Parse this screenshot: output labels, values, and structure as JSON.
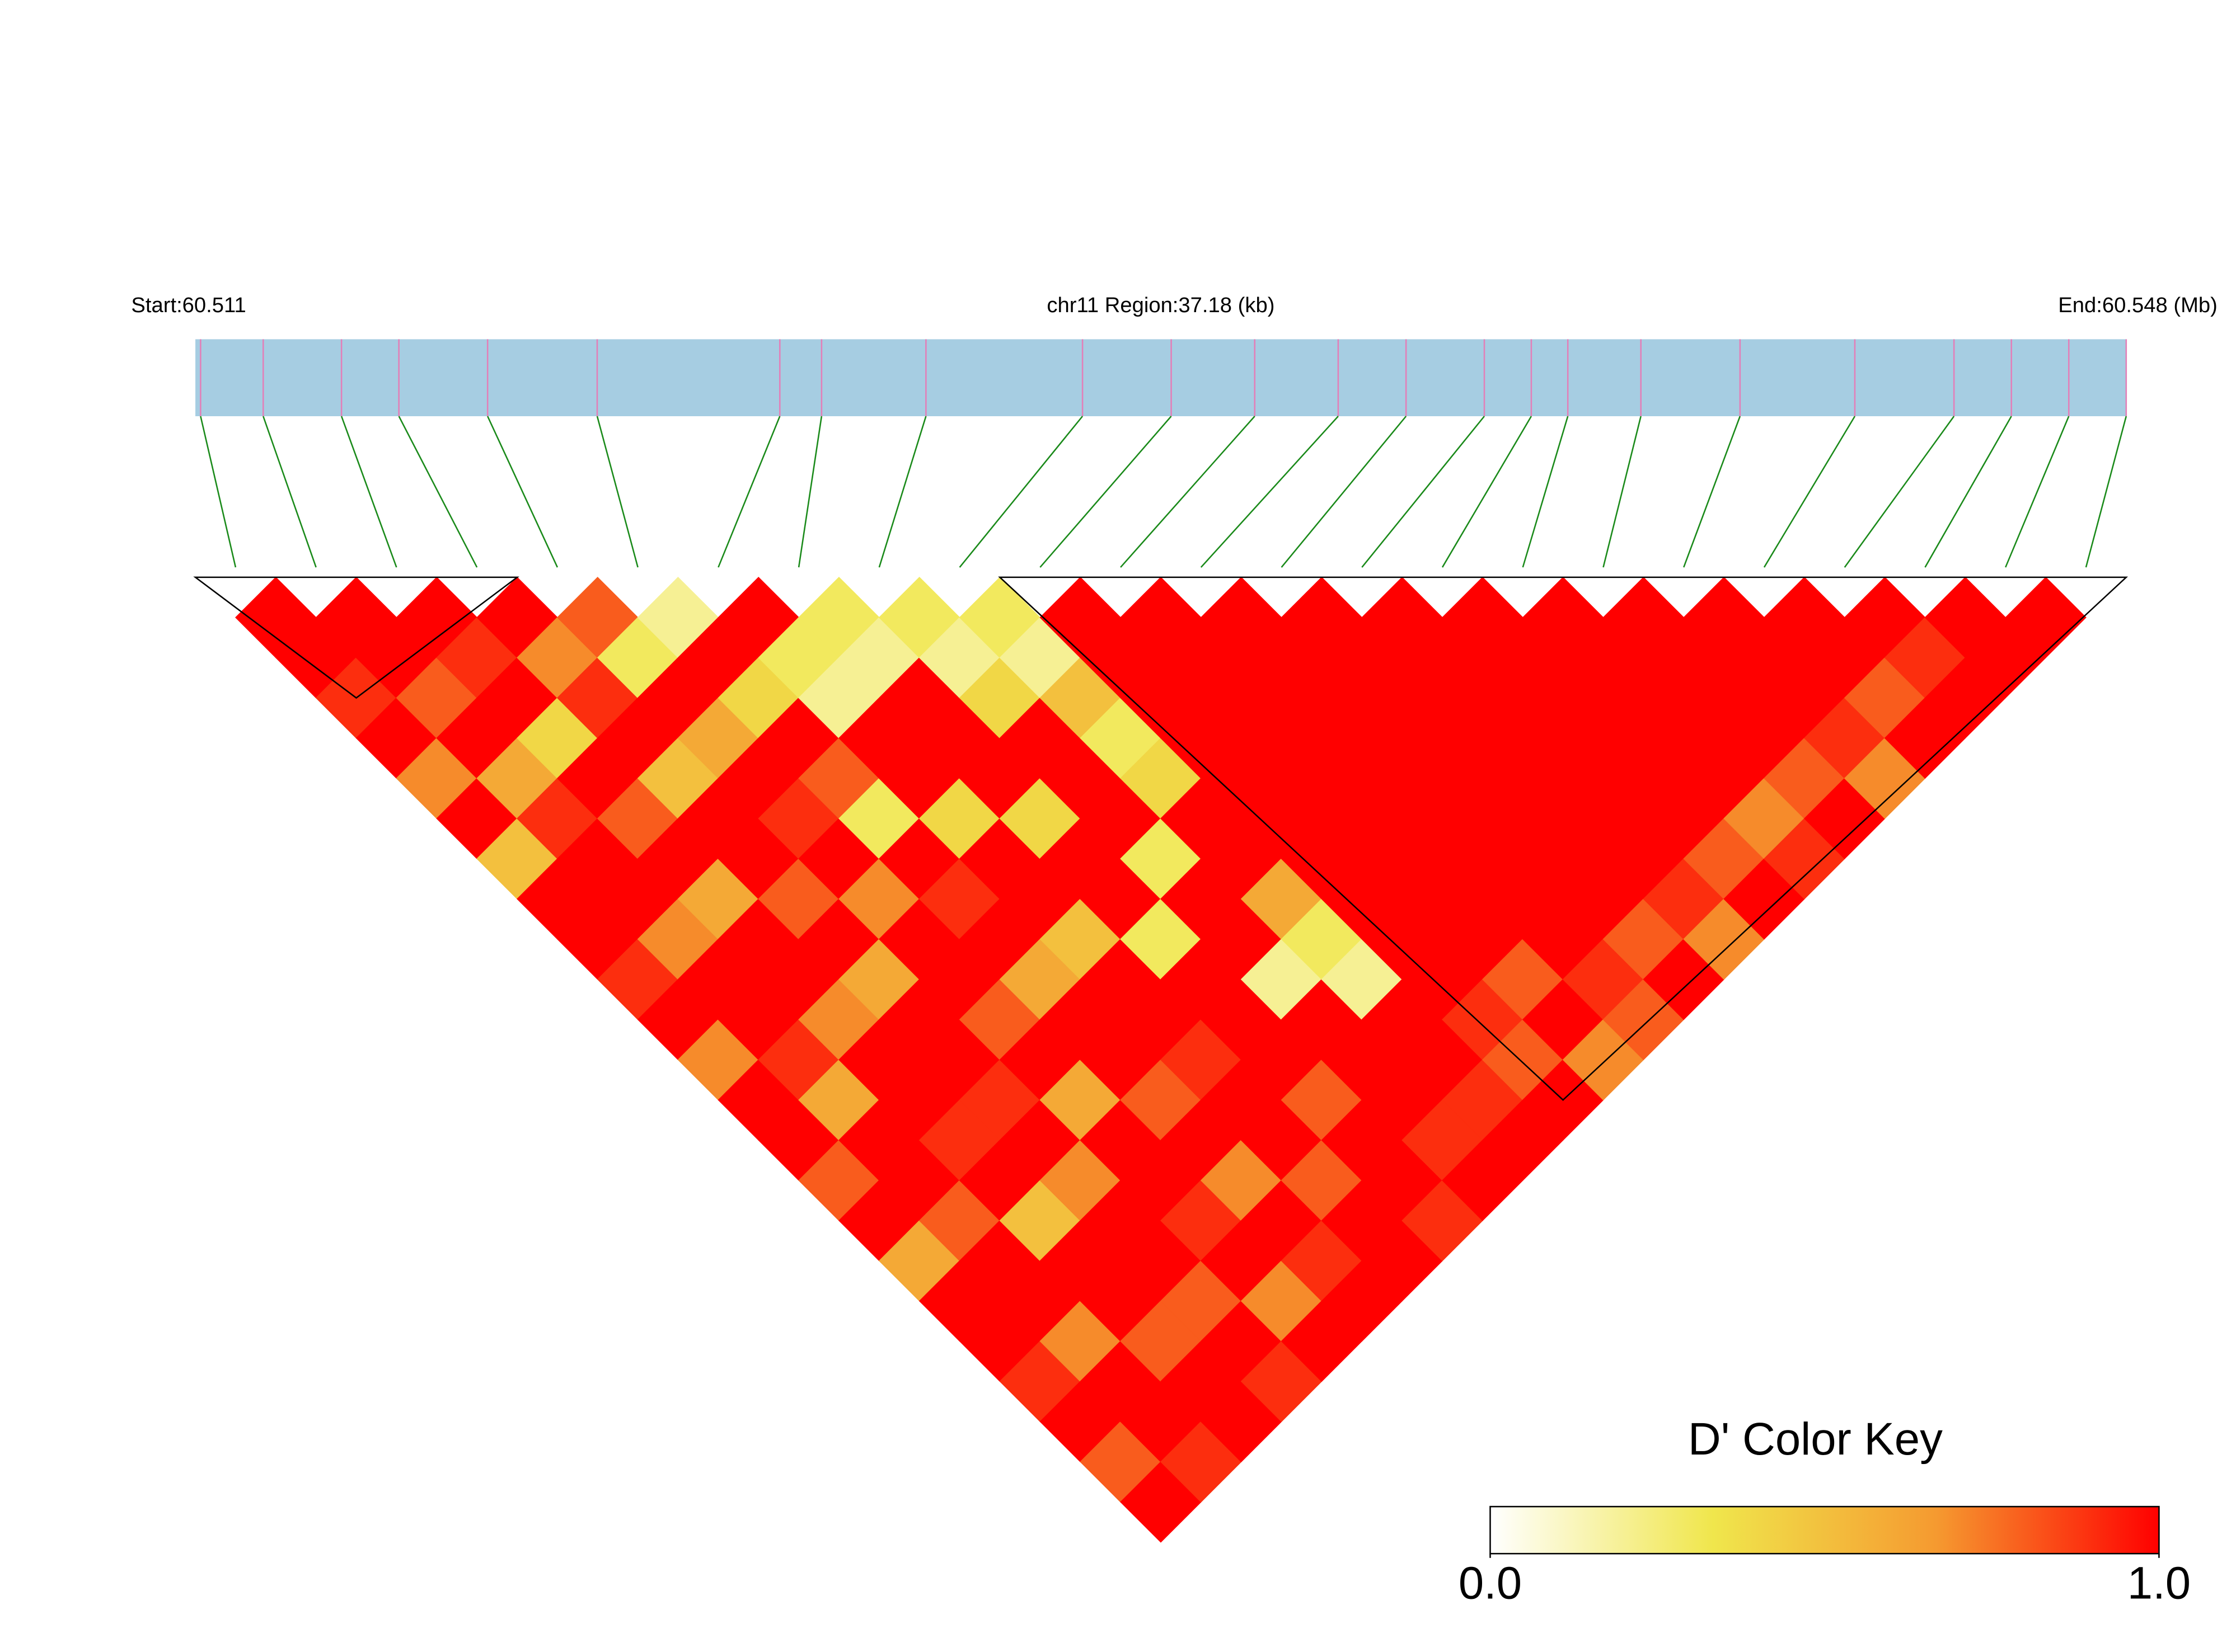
{
  "chart_data": {
    "type": "heatmap",
    "start_label": "Start:60.511",
    "region_label": "chr11 Region:37.18 (kb)",
    "end_label": "End:60.548 (Mb)",
    "xlim": [
      60.511,
      60.548
    ],
    "positions": [
      60.5111,
      60.5123,
      60.5138,
      60.5149,
      60.5166,
      60.5187,
      60.5222,
      60.523,
      60.525,
      60.528,
      60.5297,
      60.5313,
      60.5329,
      60.5342,
      60.5357,
      60.5366,
      60.5373,
      60.5387,
      60.5406,
      60.5428,
      60.5447,
      60.5458,
      60.5469,
      60.548
    ],
    "ld": [
      [
        1,
        1,
        0.9,
        1,
        0.7,
        1,
        0.5,
        1,
        1,
        0.9,
        1,
        0.7,
        1,
        1,
        0.8,
        1,
        0.6,
        1,
        1,
        0.9,
        1,
        0.8,
        1
      ],
      [
        1,
        1,
        0.8,
        1,
        0.6,
        0.9,
        1,
        1,
        0.7,
        1,
        1,
        0.9,
        0.6,
        1,
        1,
        0.8,
        1,
        1,
        0.7,
        1,
        1,
        0.9
      ],
      [
        1,
        0.9,
        1,
        0.4,
        1,
        0.8,
        1,
        0.6,
        1,
        1,
        0.7,
        1,
        1,
        0.9,
        1,
        0.5,
        1,
        1,
        0.8,
        1,
        1
      ],
      [
        1,
        0.7,
        0.9,
        1,
        0.5,
        1,
        1,
        0.8,
        1,
        0.6,
        1,
        1,
        0.9,
        1,
        0.7,
        1,
        1,
        0.8,
        1,
        0.9
      ],
      [
        0.8,
        0.3,
        1,
        0.6,
        1,
        0.9,
        1,
        0.7,
        1,
        1,
        0.8,
        1,
        0.6,
        1,
        1,
        0.9,
        1,
        0.7,
        1
      ],
      [
        0.2,
        1,
        0.4,
        1,
        0.8,
        0.3,
        1,
        0.9,
        1,
        0.6,
        1,
        1,
        0.8,
        1,
        0.7,
        1,
        0.9,
        1
      ],
      [
        1,
        0.3,
        0.2,
        1,
        1,
        0.4,
        1,
        1,
        0.5,
        1,
        1,
        0.9,
        1,
        1,
        0.8,
        1,
        1
      ],
      [
        0.3,
        0.2,
        1,
        1,
        1,
        0.4,
        1,
        1,
        0.3,
        1,
        1,
        1,
        0.8,
        1,
        1,
        0.9
      ],
      [
        0.3,
        0.2,
        0.4,
        1,
        1,
        1,
        0.3,
        1,
        1,
        0.2,
        1,
        1,
        1,
        0.9,
        1
      ],
      [
        0.3,
        0.2,
        0.5,
        0.3,
        0.4,
        1,
        1,
        0.6,
        0.3,
        0.2,
        1,
        1,
        0.9,
        1
      ],
      [
        1,
        1,
        1,
        1,
        1,
        1,
        1,
        1,
        1,
        1,
        0.9,
        0.8,
        1
      ],
      [
        1,
        1,
        1,
        1,
        1,
        1,
        1,
        1,
        1,
        0.8,
        1,
        0.7
      ],
      [
        1,
        1,
        1,
        1,
        1,
        1,
        1,
        1,
        1,
        0.9,
        0.8
      ],
      [
        1,
        1,
        1,
        1,
        1,
        1,
        1,
        1,
        0.8,
        1
      ],
      [
        1,
        1,
        1,
        1,
        1,
        1,
        1,
        0.9,
        0.7
      ],
      [
        1,
        1,
        1,
        1,
        1,
        1,
        0.8,
        1
      ],
      [
        1,
        1,
        1,
        1,
        1,
        0.7,
        0.9
      ],
      [
        1,
        1,
        1,
        1,
        0.8,
        1
      ],
      [
        1,
        1,
        1,
        0.9,
        0.7
      ],
      [
        1,
        1,
        0.8,
        1
      ],
      [
        1,
        0.9,
        1
      ],
      [
        1,
        1
      ],
      [
        1
      ]
    ],
    "blocks": [
      [
        0,
        3
      ],
      [
        10,
        23
      ]
    ],
    "colorbar_title": "D' Color Key",
    "zlim": [
      0,
      1
    ],
    "zticks": [
      {
        "value": 0,
        "label": "0.0"
      },
      {
        "value": 1,
        "label": "1.0"
      }
    ],
    "colors": [
      "#ffffff",
      "#f0e64c",
      "#f59a30",
      "#ff0000"
    ],
    "bar_color": "#a6cde2",
    "snp_line_color": "#e37fb8",
    "connector_color": "#1a8a1a"
  }
}
